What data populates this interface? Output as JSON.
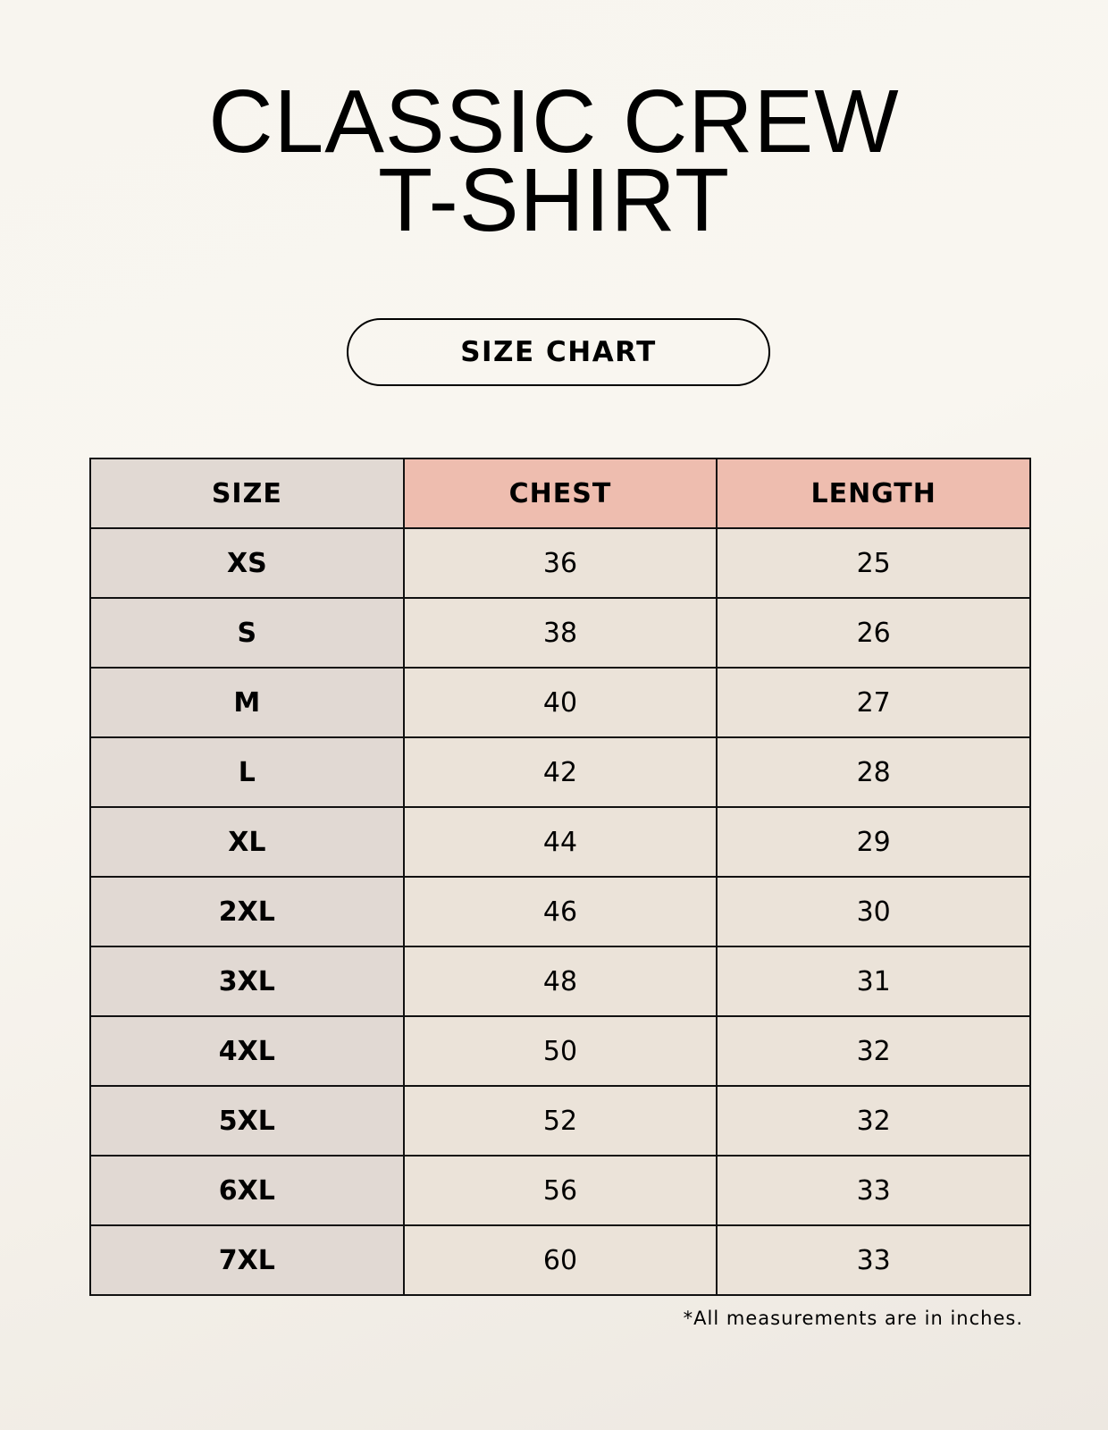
{
  "title_line1": "CLASSIC CREW",
  "title_line2": "T-SHIRT",
  "badge": "SIZE CHART",
  "colors": {
    "size_column": "#e1d9d3",
    "header_accent": "#eebdaf",
    "cell": "#ebe3d9"
  },
  "table": {
    "headers": [
      "SIZE",
      "CHEST",
      "LENGTH"
    ],
    "rows": [
      [
        "XS",
        "36",
        "25"
      ],
      [
        "S",
        "38",
        "26"
      ],
      [
        "M",
        "40",
        "27"
      ],
      [
        "L",
        "42",
        "28"
      ],
      [
        "XL",
        "44",
        "29"
      ],
      [
        "2XL",
        "46",
        "30"
      ],
      [
        "3XL",
        "48",
        "31"
      ],
      [
        "4XL",
        "50",
        "32"
      ],
      [
        "5XL",
        "52",
        "32"
      ],
      [
        "6XL",
        "56",
        "33"
      ],
      [
        "7XL",
        "60",
        "33"
      ]
    ]
  },
  "footnote": "*All measurements are in inches."
}
